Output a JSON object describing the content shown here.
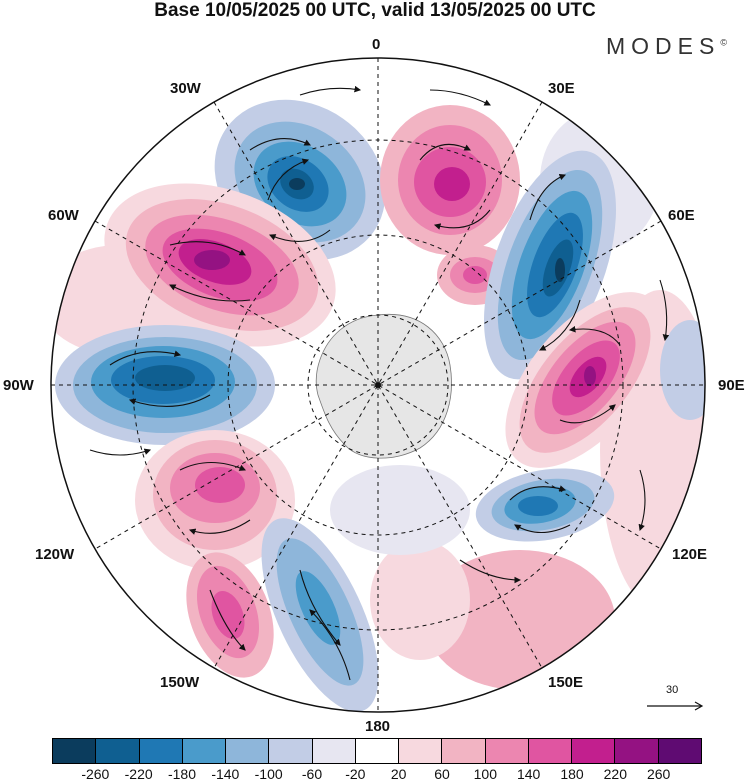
{
  "title": "Base 10/05/2025 00 UTC, valid 13/05/2025 00 UTC",
  "brand": "MODES",
  "brand_mark": "©",
  "map": {
    "projection": "south-polar-stereographic",
    "longitude_labels": {
      "lon0": "0",
      "lon30e": "30E",
      "lon60e": "60E",
      "lon90e": "90E",
      "lon120e": "120E",
      "lon150e": "150E",
      "lon180": "180",
      "lon150w": "150W",
      "lon120w": "120W",
      "lon90w": "90W",
      "lon60w": "60W",
      "lon30w": "30W"
    },
    "reference_vector": "30",
    "anomaly_features": [
      {
        "sign": "neg",
        "level": -260,
        "region": "south atlantic 15W"
      },
      {
        "sign": "pos",
        "level": 180,
        "region": "south atlantic 15E"
      },
      {
        "sign": "pos",
        "level": 100,
        "region": "30E"
      },
      {
        "sign": "neg",
        "level": -260,
        "region": "indian ocean 55E"
      },
      {
        "sign": "pos",
        "level": 260,
        "region": "indian ocean 85E"
      },
      {
        "sign": "neg",
        "level": -220,
        "region": "australia sw 110E"
      },
      {
        "sign": "pos",
        "level": 260,
        "region": "south america 55W"
      },
      {
        "sign": "neg",
        "level": -260,
        "region": "south pacific 90W"
      },
      {
        "sign": "pos",
        "level": 180,
        "region": "south pacific 110W"
      },
      {
        "sign": "pos",
        "level": 140,
        "region": "south pacific 145W"
      },
      {
        "sign": "neg",
        "level": -180,
        "region": "pacific 170W"
      }
    ]
  },
  "colorbar": {
    "colors": [
      "#0b3c5d",
      "#0f5f91",
      "#1f78b4",
      "#4a9bcb",
      "#8eb6da",
      "#c2cde6",
      "#e7e6f1",
      "#ffffff",
      "#f7d9df",
      "#f2b4c3",
      "#ec86b0",
      "#e055a1",
      "#c21f8e",
      "#941282",
      "#5f0b72"
    ],
    "ticks": [
      "-260",
      "-220",
      "-180",
      "-140",
      "-100",
      "-60",
      "-20",
      "20",
      "60",
      "100",
      "140",
      "180",
      "220",
      "260"
    ]
  }
}
